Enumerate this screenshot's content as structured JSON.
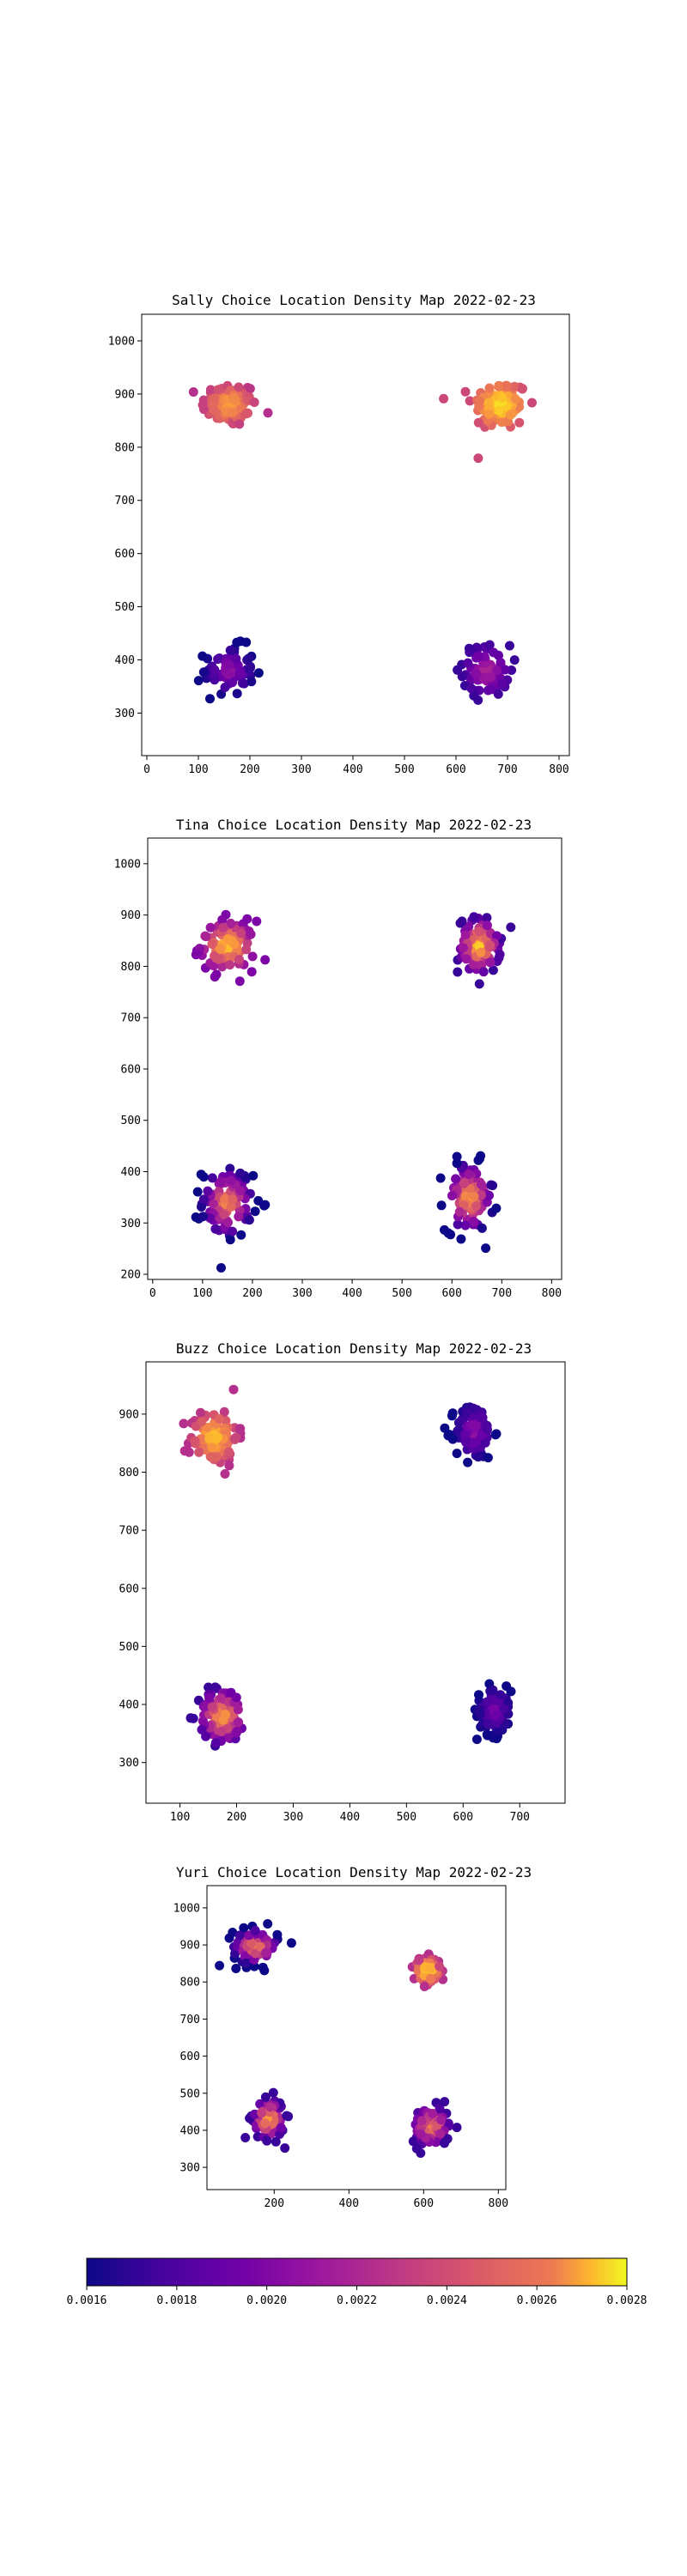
{
  "colorbar": {
    "colormap": "plasma",
    "min": 0.0016,
    "max": 0.0028,
    "ticks": [
      "0.0016",
      "0.0018",
      "0.0020",
      "0.0022",
      "0.0024",
      "0.0026",
      "0.0028"
    ]
  },
  "chart_data": [
    {
      "type": "scatter",
      "title": "Sally Choice Location Density Map 2022-02-23",
      "xlim": [
        -10,
        820
      ],
      "ylim": [
        220,
        1050
      ],
      "xticks": [
        0,
        100,
        200,
        300,
        400,
        500,
        600,
        700,
        800
      ],
      "yticks": [
        300,
        400,
        500,
        600,
        700,
        800,
        900,
        1000
      ],
      "clusters": [
        {
          "center": [
            160,
            880
          ],
          "spread": [
            45,
            35
          ],
          "count": 95,
          "density_range": [
            0.0021,
            0.0026
          ]
        },
        {
          "center": [
            685,
            880
          ],
          "spread": [
            45,
            40
          ],
          "count": 110,
          "density_range": [
            0.0022,
            0.0028
          ]
        },
        {
          "center": [
            160,
            380
          ],
          "spread": [
            40,
            38
          ],
          "count": 75,
          "density_range": [
            0.0016,
            0.002
          ]
        },
        {
          "center": [
            660,
            380
          ],
          "spread": [
            38,
            40
          ],
          "count": 80,
          "density_range": [
            0.0017,
            0.0021
          ]
        }
      ]
    },
    {
      "type": "scatter",
      "title": "Tina Choice Location Density Map 2022-02-23",
      "xlim": [
        -10,
        820
      ],
      "ylim": [
        190,
        1050
      ],
      "xticks": [
        0,
        100,
        200,
        300,
        400,
        500,
        600,
        700,
        800
      ],
      "yticks": [
        200,
        300,
        400,
        500,
        600,
        700,
        800,
        900,
        1000
      ],
      "clusters": [
        {
          "center": [
            150,
            840
          ],
          "spread": [
            45,
            40
          ],
          "count": 110,
          "density_range": [
            0.0019,
            0.0027
          ]
        },
        {
          "center": [
            655,
            840
          ],
          "spread": [
            35,
            45
          ],
          "count": 110,
          "density_range": [
            0.0017,
            0.0027
          ]
        },
        {
          "center": [
            150,
            340
          ],
          "spread": [
            42,
            55
          ],
          "count": 100,
          "density_range": [
            0.0016,
            0.0025
          ]
        },
        {
          "center": [
            635,
            350
          ],
          "spread": [
            40,
            55
          ],
          "count": 120,
          "density_range": [
            0.0016,
            0.0026
          ]
        }
      ]
    },
    {
      "type": "scatter",
      "title": "Buzz Choice Location Density Map 2022-02-23",
      "xlim": [
        40,
        780
      ],
      "ylim": [
        230,
        990
      ],
      "xticks": [
        100,
        200,
        300,
        400,
        500,
        600,
        700
      ],
      "yticks": [
        300,
        400,
        500,
        600,
        700,
        800,
        900
      ],
      "clusters": [
        {
          "center": [
            160,
            860
          ],
          "spread": [
            35,
            40
          ],
          "count": 110,
          "density_range": [
            0.0021,
            0.0027
          ]
        },
        {
          "center": [
            620,
            870
          ],
          "spread": [
            28,
            40
          ],
          "count": 100,
          "density_range": [
            0.0016,
            0.002
          ]
        },
        {
          "center": [
            175,
            380
          ],
          "spread": [
            35,
            40
          ],
          "count": 120,
          "density_range": [
            0.0017,
            0.0026
          ]
        },
        {
          "center": [
            655,
            390
          ],
          "spread": [
            25,
            35
          ],
          "count": 110,
          "density_range": [
            0.0016,
            0.0019
          ]
        }
      ]
    },
    {
      "type": "scatter",
      "title": "Yuri Choice Location Density Map 2022-02-23",
      "xlim": [
        20,
        820
      ],
      "ylim": [
        240,
        1060
      ],
      "xticks": [
        200,
        400,
        600,
        800
      ],
      "yticks": [
        300,
        400,
        500,
        600,
        700,
        800,
        900,
        1000
      ],
      "clusters": [
        {
          "center": [
            150,
            895
          ],
          "spread": [
            50,
            40
          ],
          "count": 90,
          "density_range": [
            0.0016,
            0.0025
          ]
        },
        {
          "center": [
            610,
            830
          ],
          "spread": [
            30,
            30
          ],
          "count": 90,
          "density_range": [
            0.0021,
            0.0028
          ]
        },
        {
          "center": [
            185,
            430
          ],
          "spread": [
            35,
            45
          ],
          "count": 95,
          "density_range": [
            0.0017,
            0.0026
          ]
        },
        {
          "center": [
            620,
            410
          ],
          "spread": [
            40,
            45
          ],
          "count": 100,
          "density_range": [
            0.0017,
            0.0025
          ]
        }
      ]
    }
  ]
}
